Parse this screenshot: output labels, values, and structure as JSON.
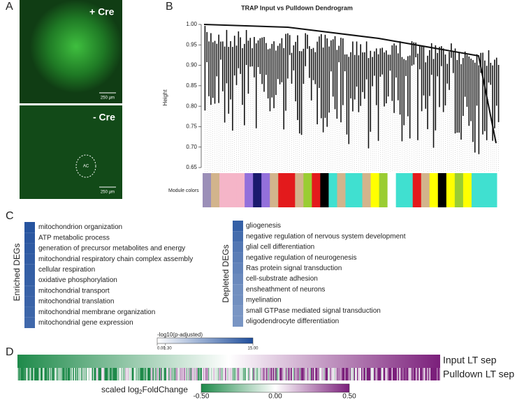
{
  "panels": {
    "a": "A",
    "b": "B",
    "c": "C",
    "d": "D"
  },
  "panel_a": {
    "top_label": "+ Cre",
    "bottom_label": "- Cre",
    "scale_top": "250 µm",
    "scale_bottom": "250 µm",
    "region": "AC"
  },
  "chart_data": {
    "type": "dendrogram",
    "title": "TRAP Input vs Pulldown Dendrogram",
    "y_label": "Height",
    "ylim": [
      0.65,
      1.0
    ],
    "yticks": [
      {
        "value": 0.65,
        "label": "0.65"
      },
      {
        "value": 0.7,
        "label": "0.70"
      },
      {
        "value": 0.75,
        "label": "0.75"
      },
      {
        "value": 0.8,
        "label": "0.80"
      },
      {
        "value": 0.85,
        "label": "0.85"
      },
      {
        "value": 0.9,
        "label": "0.90"
      },
      {
        "value": 0.95,
        "label": "0.95"
      },
      {
        "value": 1.0,
        "label": "1.00"
      }
    ],
    "module_label": "Module colors",
    "module_colors": [
      "#9b8fb8",
      "#d2b48c",
      "#f5b5c8",
      "#f5b5c8",
      "#f5b5c8",
      "#9370db",
      "#1a1a6e",
      "#9370db",
      "#d2b48c",
      "#e31a1c",
      "#e31a1c",
      "#d2b48c",
      "#9acd32",
      "#e31a1c",
      "#000000",
      "#40e0d0",
      "#d2b48c",
      "#40e0d0",
      "#40e0d0",
      "#d2b48c",
      "#ffff00",
      "#9acd32",
      "#ffffff",
      "#40e0d0",
      "#40e0d0",
      "#e31a1c",
      "#d2b48c",
      "#ffff00",
      "#000000",
      "#ffff00",
      "#9acd32",
      "#ffff00",
      "#40e0d0",
      "#40e0d0",
      "#40e0d0"
    ]
  },
  "panel_c": {
    "enriched_label": "Enriched DEGs",
    "depleted_label": "Depleted DEGs",
    "enriched_terms": [
      "mitochondrion organization",
      "ATP metabolic process",
      "generation of precursor metabolites and energy",
      "mitochondrial respiratory chain complex assembly",
      "cellular respiration",
      "oxidative phosphorylation",
      "mitochondrial transport",
      "mitochondrial translation",
      "mitochondrial membrane organization",
      "mitochondrial gene expression"
    ],
    "enriched_values": [
      14.5,
      14.2,
      14,
      13.8,
      13.6,
      13.5,
      13.3,
      13.2,
      13,
      12.8
    ],
    "depleted_terms": [
      "gliogenesis",
      "negative regulation of nervous system development",
      "glial cell differentiation",
      "negative regulation of neurogenesis",
      "Ras protein signal transduction",
      "cell-substrate adhesion",
      "ensheathment of neurons",
      "myelination",
      "small GTPase mediated signal transduction",
      "oligodendrocyte differentiation"
    ],
    "depleted_values": [
      13.5,
      12.5,
      11.5,
      11,
      10.5,
      10,
      9.5,
      9.5,
      9,
      9
    ],
    "colorbar_title": "-log10(p-adjusted)",
    "clim": [
      0,
      15
    ],
    "cticks": [
      {
        "value": 0,
        "label": "0.00"
      },
      {
        "value": 1.3,
        "label": "1.30"
      },
      {
        "value": 15,
        "label": "15.00"
      }
    ]
  },
  "panel_d": {
    "row_labels": [
      "Input LT sep",
      "Pulldown LT sep"
    ],
    "colorbar_title": [
      "scaled log",
      "2",
      "FoldChange"
    ],
    "clim": [
      -0.5,
      0.5
    ],
    "cticks": [
      {
        "value": -0.5,
        "label": "-0.50"
      },
      {
        "value": 0,
        "label": "0.00"
      },
      {
        "value": 0.5,
        "label": "0.50"
      }
    ]
  }
}
